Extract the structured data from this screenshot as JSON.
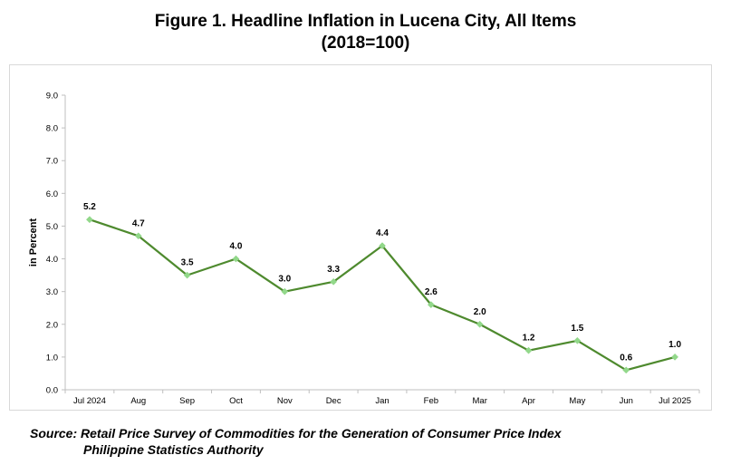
{
  "title_line1": "Figure 1. Headline Inflation in Lucena City, All Items",
  "title_line2": "(2018=100)",
  "source_line1": "Source: Retail Price Survey of Commodities for the Generation of Consumer Price Index",
  "source_line2": "Philippine Statistics Authority",
  "colors": {
    "line": "#4e8a2e",
    "marker": "#92d88a",
    "axis": "#bfbfbf"
  },
  "chart_data": {
    "type": "line",
    "categories": [
      "Jul 2024",
      "Aug",
      "Sep",
      "Oct",
      "Nov",
      "Dec",
      "Jan",
      "Feb",
      "Mar",
      "Apr",
      "May",
      "Jun",
      "Jul 2025"
    ],
    "values": [
      5.2,
      4.7,
      3.5,
      4.0,
      3.0,
      3.3,
      4.4,
      2.6,
      2.0,
      1.2,
      1.5,
      0.6,
      1.0
    ],
    "value_labels": [
      "5.2",
      "4.7",
      "3.5",
      "4.0",
      "3.0",
      "3.3",
      "4.4",
      "2.6",
      "2.0",
      "1.2",
      "1.5",
      "0.6",
      "1.0"
    ],
    "ylabel": "in Percent",
    "xlabel": "",
    "ylim": [
      0,
      9
    ],
    "yticks": [
      "0.0",
      "1.0",
      "2.0",
      "3.0",
      "4.0",
      "5.0",
      "6.0",
      "7.0",
      "8.0",
      "9.0"
    ],
    "grid": false,
    "legend": "none"
  }
}
